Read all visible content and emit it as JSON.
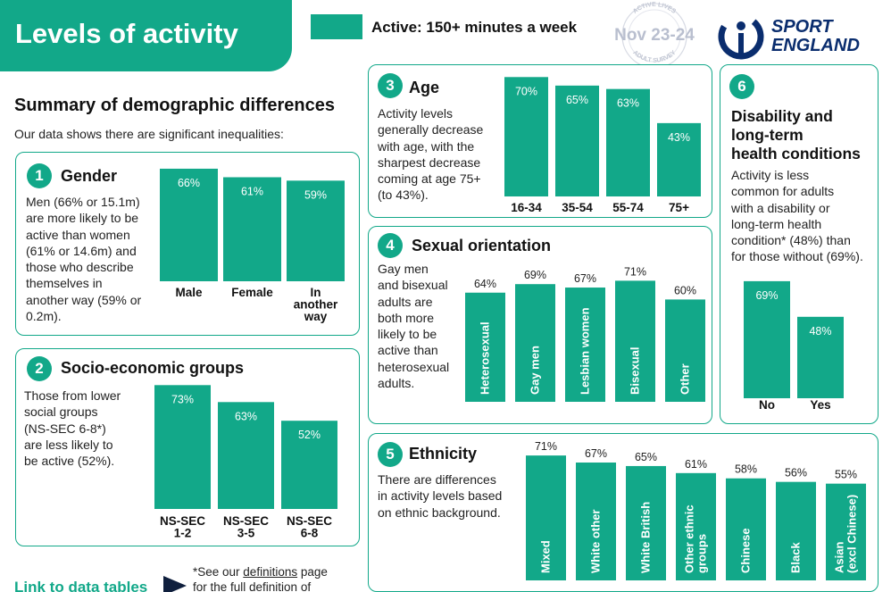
{
  "header": {
    "title": "Levels of activity",
    "legend_label": "Active: 150+ minutes a week",
    "seal_date": "Nov 23-24",
    "seal_arc_top": "ACTIVE LIVES",
    "seal_arc_bottom": "ADULT SURVEY",
    "logo_line1": "SPORT",
    "logo_line2": "ENGLAND"
  },
  "summary": {
    "title": "Summary of demographic differences",
    "subtitle": "Our data shows there are significant inequalities:"
  },
  "colors": {
    "accent": "#12a889",
    "navy": "#0a2d6e",
    "dark": "#0f1f3d"
  },
  "panels": {
    "gender": {
      "number": "1",
      "title": "Gender",
      "desc": [
        "Men (66% or 15.1m)",
        "are more likely to be",
        "active than women",
        "(61% or 14.6m) and",
        "those who describe",
        "themselves in",
        "another way (59% or",
        "0.2m)."
      ]
    },
    "socio": {
      "number": "2",
      "title": "Socio-economic groups",
      "desc": [
        "Those from lower",
        "social groups",
        "(NS-SEC 6-8*)",
        "are less likely to",
        "be active (52%)."
      ]
    },
    "age": {
      "number": "3",
      "title": "Age",
      "desc": [
        "Activity levels",
        "generally decrease",
        "with age, with the",
        "sharpest decrease",
        "coming at age 75+",
        "(to 43%)."
      ]
    },
    "sexual": {
      "number": "4",
      "title": "Sexual orientation",
      "desc": [
        "Gay men",
        "and bisexual",
        "adults are",
        "both more",
        "likely to be",
        "active than",
        "heterosexual",
        "adults."
      ]
    },
    "ethnicity": {
      "number": "5",
      "title": "Ethnicity",
      "desc": [
        "There are differences",
        "in activity levels based",
        "on ethnic background."
      ]
    },
    "disability": {
      "number": "6",
      "title": [
        "Disability and",
        "long-term",
        "health conditions"
      ],
      "desc": [
        "Activity is less",
        "common for adults",
        "with a disability or",
        "long-term health",
        "condition* (48%) than",
        "for those without (69%)."
      ]
    }
  },
  "footer": {
    "link_label": "Link to data tables",
    "footnote_prefix": "*See our ",
    "footnote_link": "definitions",
    "footnote_suffix": " page",
    "footnote_line2": "for the full definition of"
  },
  "chart_data": [
    {
      "type": "bar",
      "id": "gender",
      "unit": "%",
      "categories": [
        [
          "Male"
        ],
        [
          "Female"
        ],
        [
          "In",
          "another",
          "way"
        ]
      ],
      "values": [
        66,
        61,
        59
      ]
    },
    {
      "type": "bar",
      "id": "socio",
      "unit": "%",
      "categories": [
        [
          "NS-SEC",
          "1-2"
        ],
        [
          "NS-SEC",
          "3-5"
        ],
        [
          "NS-SEC",
          "6-8"
        ]
      ],
      "values": [
        73,
        63,
        52
      ]
    },
    {
      "type": "bar",
      "id": "age",
      "unit": "%",
      "categories": [
        [
          "16-34"
        ],
        [
          "35-54"
        ],
        [
          "55-74"
        ],
        [
          "75+"
        ]
      ],
      "values": [
        70,
        65,
        63,
        43
      ]
    },
    {
      "type": "bar",
      "id": "sexual",
      "unit": "%",
      "categories": [
        [
          "Heterosexual"
        ],
        [
          "Gay men"
        ],
        [
          "Lesbian women"
        ],
        [
          "Bisexual"
        ],
        [
          "Other"
        ]
      ],
      "values": [
        64,
        69,
        67,
        71,
        60
      ]
    },
    {
      "type": "bar",
      "id": "ethnicity",
      "unit": "%",
      "categories": [
        [
          "Mixed"
        ],
        [
          "White other"
        ],
        [
          "White British"
        ],
        [
          "Other ethnic",
          "groups"
        ],
        [
          "Chinese"
        ],
        [
          "Black"
        ],
        [
          "Asian",
          "(excl Chinese)"
        ]
      ],
      "values": [
        71,
        67,
        65,
        61,
        58,
        56,
        55
      ]
    },
    {
      "type": "bar",
      "id": "disability",
      "unit": "%",
      "categories": [
        [
          "No"
        ],
        [
          "Yes"
        ]
      ],
      "values": [
        69,
        48
      ]
    }
  ]
}
